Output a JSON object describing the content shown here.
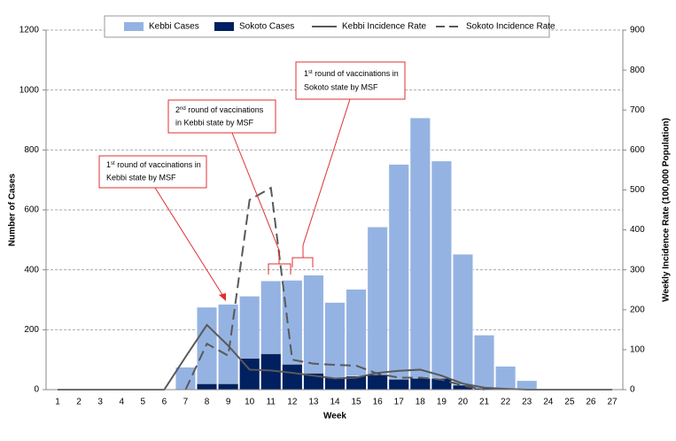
{
  "chart_data": {
    "type": "bar",
    "x_label": "Week",
    "y_label": "Number of Cases",
    "y2_label": "Weekly Incidence Rate (100,000 Population)",
    "categories": [
      "1",
      "2",
      "3",
      "4",
      "5",
      "6",
      "7",
      "8",
      "9",
      "10",
      "11",
      "12",
      "13",
      "14",
      "15",
      "16",
      "17",
      "18",
      "19",
      "20",
      "21",
      "22",
      "23",
      "24",
      "25",
      "26",
      "27"
    ],
    "series": [
      {
        "name": "Kebbi Cases",
        "type": "bar",
        "color": "#95b3e2",
        "values": [
          0,
          0,
          0,
          0,
          0,
          0,
          75,
          275,
          285,
          312,
          363,
          365,
          382,
          291,
          335,
          543,
          752,
          907,
          763,
          452,
          182,
          78,
          30,
          0,
          0,
          0,
          0
        ]
      },
      {
        "name": "Sokoto Cases",
        "type": "bar",
        "color": "#002060",
        "values": [
          0,
          0,
          0,
          0,
          0,
          0,
          0,
          20,
          20,
          105,
          120,
          85,
          55,
          40,
          45,
          50,
          35,
          38,
          38,
          15,
          5,
          0,
          0,
          0,
          0,
          0,
          0
        ]
      },
      {
        "name": "Kebbi Incidence Rate",
        "type": "line",
        "axis": "y2",
        "color": "#595959",
        "dashed": false,
        "values": [
          0,
          0,
          0,
          0,
          0,
          0,
          82,
          162,
          110,
          50,
          48,
          42,
          35,
          28,
          30,
          42,
          47,
          50,
          35,
          15,
          5,
          2,
          0,
          0,
          0,
          0,
          0
        ]
      },
      {
        "name": "Sokoto Incidence Rate",
        "type": "line",
        "axis": "y2",
        "color": "#595959",
        "dashed": true,
        "values": [
          null,
          null,
          null,
          null,
          null,
          null,
          0,
          115,
          85,
          475,
          505,
          75,
          65,
          62,
          60,
          40,
          30,
          30,
          25,
          10,
          0,
          null,
          null,
          null,
          null,
          null,
          null
        ]
      }
    ],
    "ylim": [
      0,
      1200
    ],
    "yticks": [
      0,
      200,
      400,
      600,
      800,
      1000,
      1200
    ],
    "y2lim": [
      0,
      900
    ],
    "y2ticks": [
      0,
      100,
      200,
      300,
      400,
      500,
      600,
      700,
      800,
      900
    ],
    "grid": true,
    "legend": "top",
    "annotations": [
      {
        "ordinal": "1",
        "suffix": "st",
        "line1": " round of vaccinations in",
        "line2": "Kebbi state by MSF"
      },
      {
        "ordinal": "2",
        "suffix": "nd",
        "line1": " round of vaccinations",
        "line2": "in Kebbi state by MSF"
      },
      {
        "ordinal": "1",
        "suffix": "st",
        "line1": " round of vaccinations in",
        "line2": "Sokoto state by MSF"
      }
    ]
  }
}
